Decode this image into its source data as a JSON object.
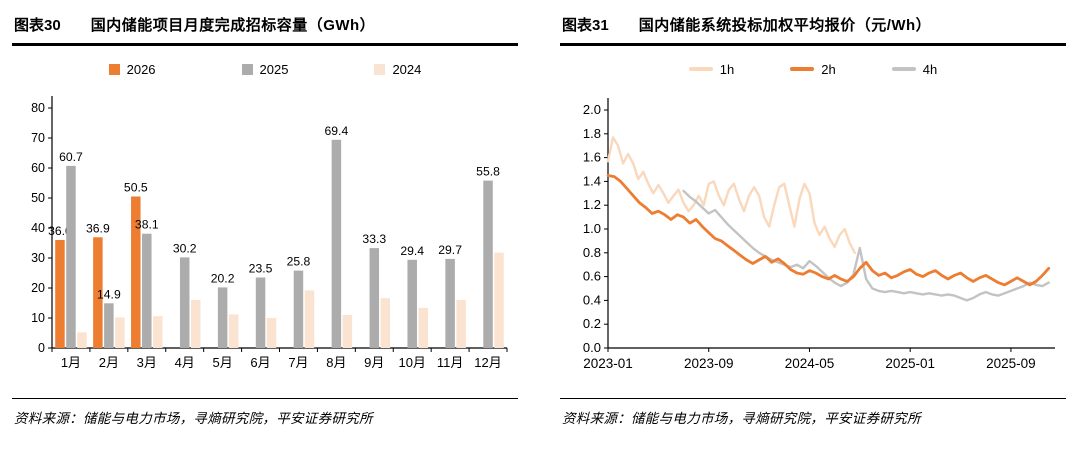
{
  "panels": {
    "left": {
      "fig_label": "图表30",
      "title": "国内储能项目月度完成招标容量（GWh）",
      "source": "资料来源：储能与电力市场，寻熵研究院，平安证券研究所"
    },
    "right": {
      "fig_label": "图表31",
      "title": "国内储能系统投标加权平均报价（元/Wh）",
      "source": "资料来源：储能与电力市场，寻熵研究院，平安证券研究所"
    }
  },
  "colors": {
    "orange": "#ED7D31",
    "gray": "#ACACAC",
    "light_orange": "#FBE3D1",
    "line_light": "#F9D8BC",
    "line_gray": "#C3C3C3",
    "axis": "#000000"
  },
  "chart_data": [
    {
      "type": "bar",
      "title": "国内储能项目月度完成招标容量（GWh）",
      "ylabel": "",
      "xlabel": "",
      "ylim": [
        0,
        80
      ],
      "ytick_step": 10,
      "grid": false,
      "legend_position": "top",
      "categories": [
        "1月",
        "2月",
        "3月",
        "4月",
        "5月",
        "6月",
        "7月",
        "8月",
        "9月",
        "10月",
        "11月",
        "12月"
      ],
      "series": [
        {
          "name": "2026",
          "color": "#ED7D31",
          "show_labels": true,
          "values": [
            36.0,
            36.9,
            50.5,
            null,
            null,
            null,
            null,
            null,
            null,
            null,
            null,
            null
          ]
        },
        {
          "name": "2025",
          "color": "#ACACAC",
          "show_labels": true,
          "values": [
            60.7,
            14.9,
            38.1,
            30.2,
            20.2,
            23.5,
            25.8,
            69.4,
            33.3,
            29.4,
            29.7,
            55.8
          ]
        },
        {
          "name": "2024",
          "color": "#FBE3D1",
          "show_labels": false,
          "values": [
            5.2,
            10.2,
            10.6,
            16.0,
            11.2,
            10.0,
            19.2,
            11.0,
            16.6,
            13.4,
            16.0,
            31.8
          ]
        }
      ]
    },
    {
      "type": "line",
      "title": "国内储能系统投标加权平均报价（元/Wh）",
      "ylabel": "",
      "xlabel": "",
      "ylim": [
        0.0,
        2.0
      ],
      "ytick_step": 0.2,
      "xlim": [
        0,
        35.5
      ],
      "grid": false,
      "legend_position": "top",
      "xticks": [
        {
          "pos": 0,
          "label": "2023-01"
        },
        {
          "pos": 8,
          "label": "2023-09"
        },
        {
          "pos": 16,
          "label": "2024-05"
        },
        {
          "pos": 24,
          "label": "2025-01"
        },
        {
          "pos": 32,
          "label": "2025-09"
        }
      ],
      "series": [
        {
          "name": "1h",
          "color": "#F9D8BC",
          "width": 2.4,
          "points": [
            [
              0,
              1.57
            ],
            [
              0.4,
              1.77
            ],
            [
              0.8,
              1.7
            ],
            [
              1.2,
              1.55
            ],
            [
              1.6,
              1.63
            ],
            [
              2,
              1.55
            ],
            [
              2.4,
              1.42
            ],
            [
              2.8,
              1.48
            ],
            [
              3.2,
              1.38
            ],
            [
              3.6,
              1.3
            ],
            [
              4,
              1.37
            ],
            [
              4.4,
              1.3
            ],
            [
              4.8,
              1.22
            ],
            [
              5.2,
              1.28
            ],
            [
              5.6,
              1.33
            ],
            [
              6,
              1.22
            ],
            [
              6.4,
              1.15
            ],
            [
              6.8,
              1.2
            ],
            [
              7.2,
              1.28
            ],
            [
              7.6,
              1.2
            ],
            [
              8,
              1.38
            ],
            [
              8.4,
              1.4
            ],
            [
              8.8,
              1.28
            ],
            [
              9.2,
              1.2
            ],
            [
              9.6,
              1.33
            ],
            [
              10,
              1.38
            ],
            [
              10.4,
              1.25
            ],
            [
              10.8,
              1.15
            ],
            [
              11.2,
              1.28
            ],
            [
              11.6,
              1.35
            ],
            [
              12,
              1.28
            ],
            [
              12.4,
              1.1
            ],
            [
              12.8,
              1.02
            ],
            [
              13.2,
              1.2
            ],
            [
              13.6,
              1.35
            ],
            [
              14,
              1.38
            ],
            [
              14.4,
              1.2
            ],
            [
              14.8,
              1.02
            ],
            [
              15.2,
              1.25
            ],
            [
              15.6,
              1.38
            ],
            [
              16,
              1.3
            ],
            [
              16.4,
              1.05
            ],
            [
              16.8,
              0.95
            ],
            [
              17.2,
              1.02
            ],
            [
              17.6,
              0.92
            ],
            [
              18,
              0.85
            ],
            [
              18.4,
              0.95
            ],
            [
              18.8,
              1.0
            ],
            [
              19.2,
              0.88
            ],
            [
              19.6,
              0.8
            ]
          ]
        },
        {
          "name": "2h",
          "color": "#ED7D31",
          "width": 2.8,
          "points": [
            [
              0,
              1.45
            ],
            [
              0.5,
              1.44
            ],
            [
              1,
              1.4
            ],
            [
              1.5,
              1.34
            ],
            [
              2,
              1.28
            ],
            [
              2.5,
              1.22
            ],
            [
              3,
              1.18
            ],
            [
              3.5,
              1.13
            ],
            [
              4,
              1.15
            ],
            [
              4.5,
              1.12
            ],
            [
              5,
              1.08
            ],
            [
              5.5,
              1.12
            ],
            [
              6,
              1.1
            ],
            [
              6.5,
              1.05
            ],
            [
              7,
              1.08
            ],
            [
              7.5,
              1.02
            ],
            [
              8,
              0.97
            ],
            [
              8.5,
              0.92
            ],
            [
              9,
              0.9
            ],
            [
              9.5,
              0.86
            ],
            [
              10,
              0.82
            ],
            [
              10.5,
              0.78
            ],
            [
              11,
              0.74
            ],
            [
              11.5,
              0.71
            ],
            [
              12,
              0.74
            ],
            [
              12.5,
              0.77
            ],
            [
              13,
              0.72
            ],
            [
              13.5,
              0.75
            ],
            [
              14,
              0.71
            ],
            [
              14.5,
              0.66
            ],
            [
              15,
              0.63
            ],
            [
              15.5,
              0.62
            ],
            [
              16,
              0.65
            ],
            [
              16.5,
              0.63
            ],
            [
              17,
              0.6
            ],
            [
              17.5,
              0.58
            ],
            [
              18,
              0.61
            ],
            [
              18.5,
              0.58
            ],
            [
              19,
              0.56
            ],
            [
              19.5,
              0.6
            ],
            [
              20,
              0.67
            ],
            [
              20.5,
              0.72
            ],
            [
              21,
              0.65
            ],
            [
              21.5,
              0.61
            ],
            [
              22,
              0.63
            ],
            [
              22.5,
              0.59
            ],
            [
              23,
              0.61
            ],
            [
              23.5,
              0.64
            ],
            [
              24,
              0.66
            ],
            [
              24.5,
              0.62
            ],
            [
              25,
              0.6
            ],
            [
              25.5,
              0.63
            ],
            [
              26,
              0.65
            ],
            [
              26.5,
              0.61
            ],
            [
              27,
              0.58
            ],
            [
              27.5,
              0.61
            ],
            [
              28,
              0.63
            ],
            [
              28.5,
              0.59
            ],
            [
              29,
              0.56
            ],
            [
              29.5,
              0.59
            ],
            [
              30,
              0.61
            ],
            [
              30.5,
              0.58
            ],
            [
              31,
              0.55
            ],
            [
              31.5,
              0.53
            ],
            [
              32,
              0.56
            ],
            [
              32.5,
              0.59
            ],
            [
              33,
              0.56
            ],
            [
              33.5,
              0.53
            ],
            [
              34,
              0.56
            ],
            [
              34.5,
              0.61
            ],
            [
              35,
              0.67
            ]
          ]
        },
        {
          "name": "4h",
          "color": "#C3C3C3",
          "width": 2.4,
          "points": [
            [
              6,
              1.32
            ],
            [
              6.5,
              1.27
            ],
            [
              7,
              1.23
            ],
            [
              7.5,
              1.18
            ],
            [
              8,
              1.13
            ],
            [
              8.5,
              1.16
            ],
            [
              9,
              1.1
            ],
            [
              9.5,
              1.04
            ],
            [
              10,
              0.99
            ],
            [
              10.5,
              0.94
            ],
            [
              11,
              0.89
            ],
            [
              11.5,
              0.84
            ],
            [
              12,
              0.8
            ],
            [
              12.5,
              0.77
            ],
            [
              13,
              0.74
            ],
            [
              13.5,
              0.72
            ],
            [
              14,
              0.7
            ],
            [
              14.5,
              0.68
            ],
            [
              15,
              0.7
            ],
            [
              15.5,
              0.67
            ],
            [
              16,
              0.73
            ],
            [
              16.5,
              0.69
            ],
            [
              17,
              0.64
            ],
            [
              17.5,
              0.59
            ],
            [
              18,
              0.55
            ],
            [
              18.5,
              0.52
            ],
            [
              19,
              0.55
            ],
            [
              19.5,
              0.62
            ],
            [
              20,
              0.84
            ],
            [
              20.5,
              0.58
            ],
            [
              21,
              0.5
            ],
            [
              21.5,
              0.48
            ],
            [
              22,
              0.47
            ],
            [
              22.5,
              0.48
            ],
            [
              23,
              0.47
            ],
            [
              23.5,
              0.46
            ],
            [
              24,
              0.47
            ],
            [
              24.5,
              0.46
            ],
            [
              25,
              0.45
            ],
            [
              25.5,
              0.46
            ],
            [
              26,
              0.45
            ],
            [
              26.5,
              0.44
            ],
            [
              27,
              0.45
            ],
            [
              27.5,
              0.44
            ],
            [
              28,
              0.42
            ],
            [
              28.5,
              0.4
            ],
            [
              29,
              0.42
            ],
            [
              29.5,
              0.45
            ],
            [
              30,
              0.47
            ],
            [
              30.5,
              0.45
            ],
            [
              31,
              0.44
            ],
            [
              31.5,
              0.46
            ],
            [
              32,
              0.48
            ],
            [
              32.5,
              0.5
            ],
            [
              33,
              0.52
            ],
            [
              33.5,
              0.55
            ],
            [
              34,
              0.53
            ],
            [
              34.5,
              0.52
            ],
            [
              35,
              0.55
            ]
          ]
        }
      ]
    }
  ]
}
